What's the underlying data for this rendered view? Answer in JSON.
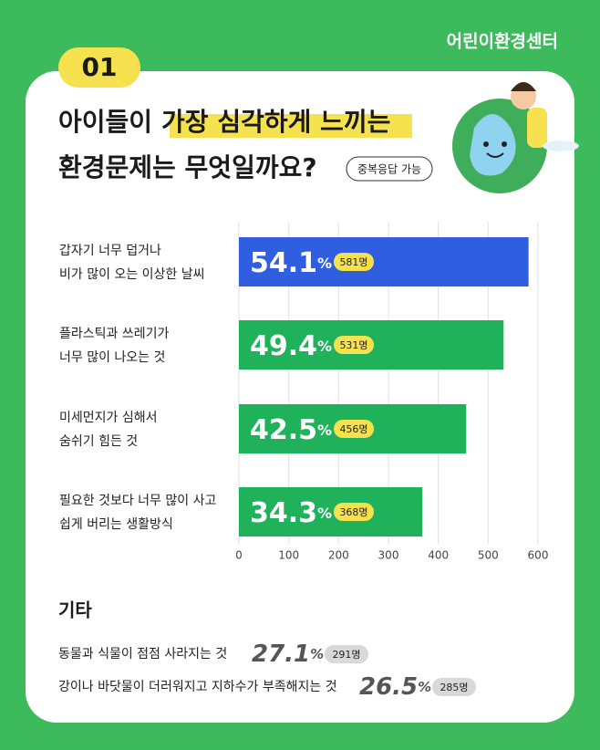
{
  "brand": "어린이환경센터",
  "badge": "01",
  "title": [
    "아이들이",
    "가장 심각하게 느끼는",
    "환경문제는 무엇일까요?"
  ],
  "tag": "중복응답 가능",
  "chart_data": {
    "type": "bar",
    "orientation": "horizontal",
    "categories": [
      [
        "갑자기 너무 덥거나",
        "비가 많이 오는 이상한 날씨"
      ],
      [
        "플라스틱과 쓰레기가",
        "너무 많이 나오는 것"
      ],
      [
        "미세먼지가 심해서",
        "숨쉬기 힘든 것"
      ],
      [
        "필요한 것보다 너무 많이 사고",
        "쉽게 버리는 생활방식"
      ]
    ],
    "values": [
      581,
      531,
      456,
      368
    ],
    "value_labels": [
      "581명",
      "531명",
      "456명",
      "368명"
    ],
    "percents": [
      54.1,
      49.4,
      42.5,
      34.3
    ],
    "percent_unit": "%",
    "colors": [
      "#2f5fe0",
      "#1fb25a",
      "#1fb25a",
      "#1fb25a"
    ],
    "xlim": [
      0,
      600
    ],
    "xticks": [
      0,
      100,
      200,
      300,
      400,
      500,
      600
    ],
    "grid": true
  },
  "others": {
    "title": "기타",
    "items": [
      {
        "label": "동물과 식물이 점점 사라지는 것",
        "percent": 27.1,
        "count_label": "291명"
      },
      {
        "label": "강이나 바닷물이 더러워지고 지하수가 부족해지는 것",
        "percent": 26.5,
        "count_label": "285명"
      }
    ]
  }
}
